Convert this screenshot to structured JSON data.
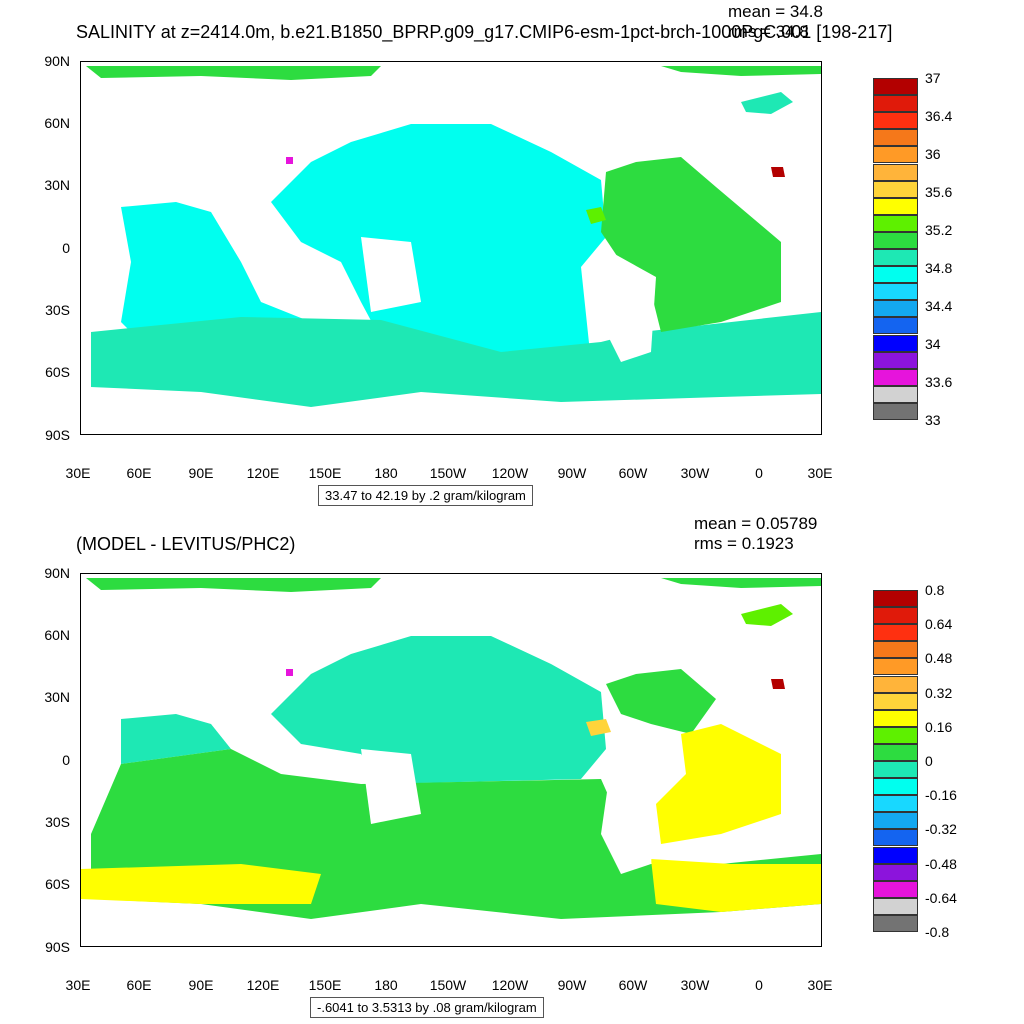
{
  "chart_data": [
    {
      "type": "heatmap",
      "title": "SALINITY at z=2414.0m, b.e21.B1850_BPRP.g09_g17.CMIP6-esm-1pct-brch-1000PgC.001 [198-217]",
      "mean_label": "mean = 34.8",
      "rms_label": "rms = 34.8",
      "y_ticks": [
        "90N",
        "60N",
        "30N",
        "0",
        "30S",
        "60S",
        "90S"
      ],
      "x_ticks": [
        "30E",
        "60E",
        "90E",
        "120E",
        "150E",
        "180",
        "150W",
        "120W",
        "90W",
        "60W",
        "30W",
        "0",
        "30E"
      ],
      "info": "33.47 to 42.19 by .2 gram/kilogram",
      "colorbar_labels": [
        "37",
        "36.4",
        "36",
        "35.6",
        "35.2",
        "34.8",
        "34.4",
        "34",
        "33.6",
        "33"
      ],
      "colorbar_colors": [
        "#b30000",
        "#e01a0a",
        "#ff3010",
        "#f5781a",
        "#ff9a26",
        "#ffb43a",
        "#ffd43a",
        "#ffff00",
        "#5ef000",
        "#2ddc40",
        "#1ee8b4",
        "#00ffef",
        "#18d8ff",
        "#14a8f0",
        "#1464f0",
        "#0000ff",
        "#8c14dc",
        "#e614dc",
        "#d2d2d2",
        "#737373"
      ]
    },
    {
      "type": "heatmap",
      "title": "(MODEL - LEVITUS/PHC2)",
      "mean_label": "mean = 0.05789",
      "rms_label": "rms = 0.1923",
      "y_ticks": [
        "90N",
        "60N",
        "30N",
        "0",
        "30S",
        "60S",
        "90S"
      ],
      "x_ticks": [
        "30E",
        "60E",
        "90E",
        "120E",
        "150E",
        "180",
        "150W",
        "120W",
        "90W",
        "60W",
        "30W",
        "0",
        "30E"
      ],
      "info": "-.6041 to 3.5313 by .08 gram/kilogram",
      "colorbar_labels": [
        "0.8",
        "0.64",
        "0.48",
        "0.32",
        "0.16",
        "0",
        "-0.16",
        "-0.32",
        "-0.48",
        "-0.64",
        "-0.8"
      ],
      "colorbar_colors": [
        "#b30000",
        "#e01a0a",
        "#ff3010",
        "#f5781a",
        "#ff9a26",
        "#ffb43a",
        "#ffd43a",
        "#ffff00",
        "#5ef000",
        "#2ddc40",
        "#1ee8b4",
        "#00ffef",
        "#18d8ff",
        "#14a8f0",
        "#1464f0",
        "#0000ff",
        "#8c14dc",
        "#e614dc",
        "#d2d2d2",
        "#737373"
      ]
    }
  ]
}
